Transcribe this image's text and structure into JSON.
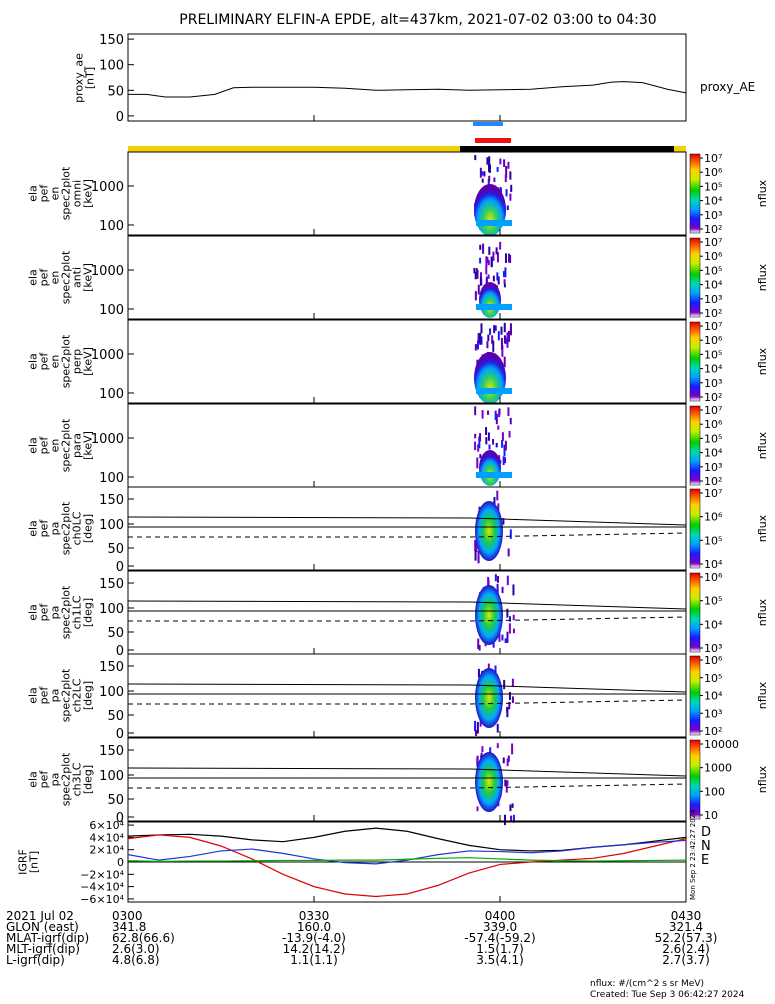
{
  "title": "PRELIMINARY ELFIN-A EPDE, alt=437km, 2021-07-02 03:00 to 04:30",
  "chart_data": {
    "type": "spectrogram",
    "title": "PRELIMINARY ELFIN-A EPDE, alt=437km, 2021-07-02 03:00 to 04:30",
    "time_range": [
      "2021-07-02 03:00",
      "2021-07-02 04:30"
    ],
    "time_ticks": [
      "0300",
      "0330",
      "0400",
      "0430"
    ],
    "proxy_ae": {
      "ylabel": [
        "proxy_ae",
        "[nT]"
      ],
      "legend": "proxy_AE",
      "ylim": [
        -10,
        160
      ],
      "yticks": [
        "150",
        "100",
        "50",
        "0"
      ],
      "t_min": [
        0,
        3,
        6,
        10,
        14,
        17,
        20,
        25,
        30,
        35,
        40,
        45,
        50,
        55,
        60,
        65,
        70,
        75,
        78,
        80,
        83,
        87,
        90
      ],
      "values": [
        42,
        42,
        37,
        37,
        42,
        55,
        56,
        56,
        56,
        54,
        50,
        51,
        52,
        50,
        51,
        52,
        57,
        60,
        66,
        67,
        65,
        52,
        45
      ]
    },
    "panels": [
      {
        "ylabel": [
          "ela",
          "pef",
          "en",
          "spec2plot",
          "omni",
          "[keV]"
        ],
        "yticks": [
          "1000",
          "100"
        ],
        "cbar_ticks": [
          "10⁷",
          "10⁶",
          "10⁵",
          "10⁴",
          "10³",
          "10²"
        ],
        "cbar_label": "nflux"
      },
      {
        "ylabel": [
          "ela",
          "pef",
          "en",
          "spec2plot",
          "anti",
          "[keV]"
        ],
        "yticks": [
          "1000",
          "100"
        ],
        "cbar_ticks": [
          "10⁷",
          "10⁶",
          "10⁵",
          "10⁴",
          "10³",
          "10²"
        ],
        "cbar_label": "nflux"
      },
      {
        "ylabel": [
          "ela",
          "pef",
          "en",
          "spec2plot",
          "perp",
          "[keV]"
        ],
        "yticks": [
          "1000",
          "100"
        ],
        "cbar_ticks": [
          "10⁷",
          "10⁶",
          "10⁵",
          "10⁴",
          "10³",
          "10²"
        ],
        "cbar_label": "nflux"
      },
      {
        "ylabel": [
          "ela",
          "pef",
          "en",
          "spec2plot",
          "para",
          "[keV]"
        ],
        "yticks": [
          "1000",
          "100"
        ],
        "cbar_ticks": [
          "10⁷",
          "10⁶",
          "10⁵",
          "10⁴",
          "10³",
          "10²"
        ],
        "cbar_label": "nflux"
      },
      {
        "ylabel": [
          "ela",
          "pef",
          "pa",
          "spec2plot",
          "ch0LC",
          "[deg]"
        ],
        "yticks": [
          "150",
          "100",
          "50",
          "0"
        ],
        "cbar_ticks": [
          "10⁷",
          "10⁶",
          "10⁵",
          "10⁴"
        ],
        "cbar_label": "nflux"
      },
      {
        "ylabel": [
          "ela",
          "pef",
          "pa",
          "spec2plot",
          "ch1LC",
          "[deg]"
        ],
        "yticks": [
          "150",
          "100",
          "50",
          "0"
        ],
        "cbar_ticks": [
          "10⁶",
          "10⁵",
          "10⁴",
          "10³"
        ],
        "cbar_label": "nflux"
      },
      {
        "ylabel": [
          "ela",
          "pef",
          "pa",
          "spec2plot",
          "ch2LC",
          "[deg]"
        ],
        "yticks": [
          "150",
          "100",
          "50",
          "0"
        ],
        "cbar_ticks": [
          "10⁶",
          "10⁵",
          "10⁴",
          "10³",
          "10²"
        ],
        "cbar_label": "nflux"
      },
      {
        "ylabel": [
          "ela",
          "pef",
          "pa",
          "spec2plot",
          "ch3LC",
          "[deg]"
        ],
        "yticks": [
          "150",
          "100",
          "50",
          "0"
        ],
        "cbar_ticks": [
          "10000",
          "1000",
          "100",
          "10"
        ],
        "cbar_label": "nflux"
      }
    ],
    "igrf": {
      "ylabel": [
        "IGRF",
        "[nT]"
      ],
      "ylim": [
        -65000,
        65000
      ],
      "yticks": [
        "6×10⁴",
        "4×10⁴",
        "2×10⁴",
        "0",
        "−2×10⁴",
        "−4×10⁴",
        "−6×10⁴"
      ],
      "legend": [
        "D",
        "N",
        "E"
      ],
      "colors": [
        "#dd0000",
        "#2233cc",
        "#00aa00"
      ],
      "side_text": "Mon Sep  2 23:42:27 2024",
      "t_min": [
        0,
        5,
        10,
        15,
        20,
        25,
        30,
        35,
        40,
        45,
        50,
        55,
        60,
        65,
        70,
        75,
        80,
        85,
        90
      ],
      "D": [
        38000,
        44000,
        40000,
        26000,
        5000,
        -20000,
        -40000,
        -52000,
        -56000,
        -52000,
        -38000,
        -18000,
        -4000,
        0,
        3000,
        6000,
        14000,
        26000,
        38000
      ],
      "N": [
        12000,
        3000,
        9000,
        18000,
        21000,
        14000,
        5000,
        -1000,
        -3000,
        3000,
        12000,
        18000,
        17000,
        15000,
        18000,
        24000,
        28000,
        32000,
        35000
      ],
      "E": [
        2000,
        1000,
        1500,
        1500,
        2000,
        2500,
        2500,
        3000,
        3000,
        4500,
        6000,
        7000,
        5000,
        3000,
        2000,
        1500,
        2000,
        2500,
        3000
      ],
      "F": [
        42000,
        44000,
        45000,
        42000,
        36000,
        33000,
        40000,
        50000,
        55000,
        50000,
        38000,
        27000,
        20000,
        18000,
        19000,
        24000,
        28000,
        34000,
        40000
      ]
    },
    "footer_rows": [
      {
        "label": "2021 Jul 02",
        "vals": [
          "0300",
          "0330",
          "0400",
          "0430"
        ]
      },
      {
        "label": "GLON (east)",
        "vals": [
          "341.8",
          "160.0",
          "339.0",
          "321.4"
        ]
      },
      {
        "label": "MLAT-igrf(dip)",
        "vals": [
          "62.8(66.6)",
          "-13.9(-4.0)",
          "-57.4(-59.2)",
          "52.2(57.3)"
        ]
      },
      {
        "label": "MLT-igrf(dip)",
        "vals": [
          "2.6(3.0)",
          "14.2(14.2)",
          "1.5(1.7)",
          "2.6(2.4)"
        ]
      },
      {
        "label": "L-igrf(dip)",
        "vals": [
          "4.8(6.8)",
          "1.1(1.1)",
          "3.5(4.1)",
          "2.7(3.7)"
        ]
      }
    ],
    "units_note": "nflux: #/(cm^2 s sr MeV)",
    "created": "Created: Tue Sep  3 06:42:27 2024"
  }
}
